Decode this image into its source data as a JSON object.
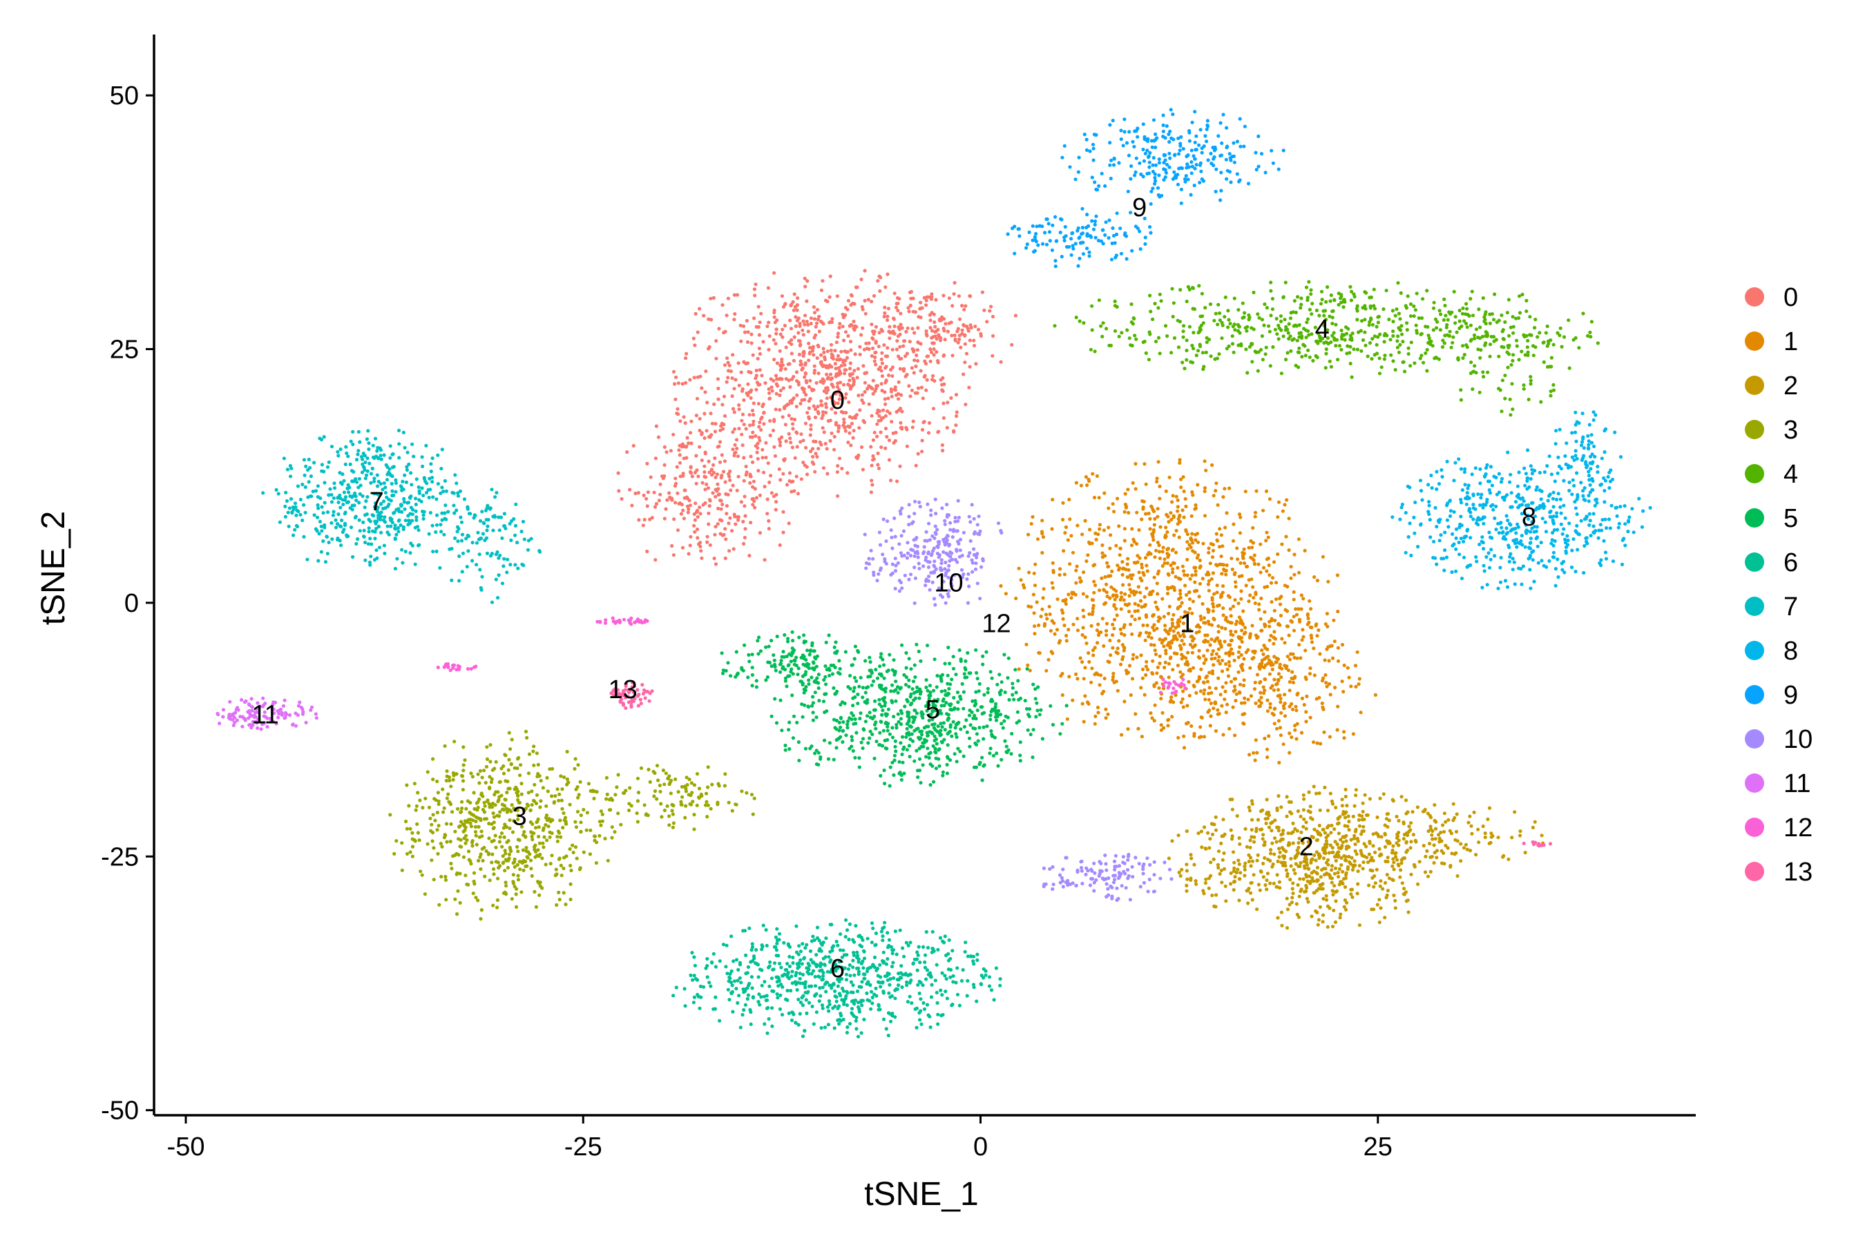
{
  "chart_data": {
    "type": "scatter",
    "title": "",
    "xlabel": "tSNE_1",
    "ylabel": "tSNE_2",
    "xlim": [
      -52,
      45
    ],
    "ylim": [
      -50.5,
      56
    ],
    "x_ticks": [
      -50,
      -25,
      0,
      25
    ],
    "y_ticks": [
      -50,
      -25,
      0,
      25,
      50
    ],
    "x_tick_labels": [
      "-50",
      "-25",
      "0",
      "25"
    ],
    "y_tick_labels": [
      "-50",
      "-25",
      "0",
      "25",
      "50"
    ],
    "grid": false,
    "legend_position": "right",
    "point_count_note": "approx. 10000 points",
    "series": [
      {
        "name": "0",
        "color": "#F8766D",
        "label_pos": [
          -9,
          20
        ],
        "regions": [
          [
            -10,
            22,
            8,
            10,
            900
          ],
          [
            -17,
            11,
            5,
            7,
            300
          ],
          [
            -3,
            27,
            5,
            4,
            150
          ]
        ]
      },
      {
        "name": "1",
        "color": "#E38900",
        "label_pos": [
          13,
          -2
        ],
        "regions": [
          [
            12,
            0,
            9,
            12,
            1100
          ],
          [
            18,
            -8,
            6,
            7,
            300
          ]
        ]
      },
      {
        "name": "2",
        "color": "#C49A00",
        "label_pos": [
          20.5,
          -24
        ],
        "regions": [
          [
            21,
            -25,
            8,
            6,
            700
          ],
          [
            30,
            -23,
            5,
            3,
            100
          ]
        ]
      },
      {
        "name": "3",
        "color": "#99A800",
        "label_pos": [
          -29,
          -21
        ],
        "regions": [
          [
            -30,
            -22,
            6,
            8,
            600
          ],
          [
            -19,
            -19,
            5,
            3,
            120
          ]
        ]
      },
      {
        "name": "4",
        "color": "#53B400",
        "label_pos": [
          21.5,
          27
        ],
        "regions": [
          [
            22,
            27,
            15,
            4,
            600
          ],
          [
            33,
            24,
            4,
            5,
            100
          ]
        ]
      },
      {
        "name": "5",
        "color": "#00BC56",
        "label_pos": [
          -3,
          -10.5
        ],
        "regions": [
          [
            -4,
            -11,
            8,
            6,
            700
          ],
          [
            -12,
            -6,
            4,
            3,
            150
          ]
        ]
      },
      {
        "name": "6",
        "color": "#00C094",
        "label_pos": [
          -9,
          -36
        ],
        "regions": [
          [
            -9,
            -37,
            9,
            5,
            700
          ]
        ]
      },
      {
        "name": "7",
        "color": "#00BFC4",
        "label_pos": [
          -38,
          10
        ],
        "regions": [
          [
            -38,
            10,
            6,
            6,
            500
          ],
          [
            -31,
            6,
            3,
            5,
            100
          ]
        ]
      },
      {
        "name": "8",
        "color": "#00B6EB",
        "label_pos": [
          34.5,
          8.5
        ],
        "regions": [
          [
            34,
            8,
            7,
            6,
            500
          ],
          [
            38,
            15,
            2,
            4,
            80
          ]
        ]
      },
      {
        "name": "9",
        "color": "#06A4FF",
        "label_pos": [
          10,
          39
        ],
        "regions": [
          [
            12,
            44,
            6,
            4,
            250
          ],
          [
            6,
            36,
            5,
            2.5,
            120
          ]
        ]
      },
      {
        "name": "10",
        "color": "#A58AFF",
        "label_pos": [
          -2,
          2
        ],
        "regions": [
          [
            -3,
            5,
            4,
            5,
            250
          ],
          [
            8,
            -27,
            4,
            2,
            120
          ]
        ]
      },
      {
        "name": "11",
        "color": "#DF70F8",
        "label_pos": [
          -45,
          -11
        ],
        "regions": [
          [
            -45,
            -11,
            3,
            1.5,
            120
          ]
        ]
      },
      {
        "name": "12",
        "color": "#FB61D7",
        "label_pos": [
          1,
          -2
        ],
        "regions": [
          [
            -22.5,
            -1.8,
            1.5,
            0.3,
            30
          ],
          [
            -33,
            -6.3,
            1.2,
            0.4,
            20
          ],
          [
            12,
            -8,
            0.8,
            1,
            20
          ]
        ]
      },
      {
        "name": "13",
        "color": "#FF66A8",
        "label_pos": [
          -22.5,
          -8.5
        ],
        "regions": [
          [
            -22,
            -9,
            1.2,
            1.5,
            60
          ],
          [
            35,
            -23.7,
            0.8,
            0.3,
            10
          ]
        ]
      }
    ]
  }
}
